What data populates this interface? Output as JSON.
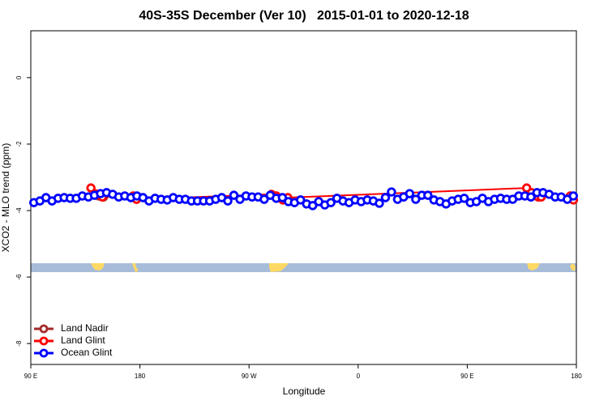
{
  "chart_data": {
    "type": "line",
    "title": "40S-35S December (Ver 10)   2015-01-01 to 2020-12-18",
    "xlabel": "Longitude",
    "ylabel": "XCO2 - MLO trend (ppm)",
    "xlim": [
      90,
      540
    ],
    "ylim": [
      -8.63,
      1.41
    ],
    "xticks": [
      {
        "value": 90,
        "label": "90 E"
      },
      {
        "value": 180,
        "label": "180"
      },
      {
        "value": 270,
        "label": "90 W"
      },
      {
        "value": 360,
        "label": "0"
      },
      {
        "value": 450,
        "label": "90 E"
      },
      {
        "value": 540,
        "label": "180"
      }
    ],
    "yticks": [
      -8,
      -6,
      -4,
      -2,
      0
    ],
    "legend": "bottom-left",
    "series": [
      {
        "name": "Land Nadir",
        "color": "#a52a2a",
        "x": [
          146,
          150,
          178.5
        ],
        "values": [
          -3.56,
          -3.59,
          -3.59
        ]
      },
      {
        "name": "Land Glint",
        "color": "#ff0000",
        "x": [
          139.6,
          143.6,
          149,
          174.5,
          177.2,
          288.5,
          292.5,
          297.9,
          302,
          499,
          503,
          508.5,
          511,
          535,
          537.6
        ],
        "values": [
          -3.32,
          -3.5,
          -3.59,
          -3.56,
          -3.66,
          -3.51,
          -3.56,
          -3.68,
          -3.61,
          -3.32,
          -3.46,
          -3.59,
          -3.59,
          -3.56,
          -3.68
        ]
      },
      {
        "name": "Ocean Glint",
        "color": "#0000ff",
        "x": [
          92.5,
          97.5,
          102.5,
          107.5,
          112.5,
          117.5,
          122.5,
          127.5,
          132.5,
          137.5,
          142.5,
          147.5,
          152.5,
          157.5,
          162.5,
          167.5,
          172.5,
          177.5,
          182.5,
          187.5,
          192.5,
          197.5,
          202.5,
          207.5,
          212.5,
          217.5,
          222.5,
          227.5,
          232.5,
          237.5,
          242.5,
          247.5,
          252.5,
          257.5,
          262.5,
          267.5,
          272.5,
          277.5,
          282.5,
          287.5,
          292.5,
          297.5,
          302.5,
          307.5,
          312.5,
          317.5,
          322.5,
          327.5,
          332.5,
          337.5,
          342.5,
          347.5,
          352.5,
          357.5,
          362.5,
          367.5,
          372.5,
          377.5,
          382.5,
          387.5,
          392.5,
          397.5,
          402.5,
          407.5,
          412.5,
          417.5,
          422.5,
          427.5,
          432.5,
          437.5,
          442.5,
          447.5,
          452.5,
          457.5,
          462.5,
          467.5,
          472.5,
          477.5,
          482.5,
          487.5,
          492.5,
          497.5,
          502.5,
          507.5,
          512.5,
          517.5,
          522.5,
          527.5,
          532.5,
          537.5
        ],
        "values": [
          -3.76,
          -3.71,
          -3.61,
          -3.71,
          -3.63,
          -3.61,
          -3.63,
          -3.63,
          -3.56,
          -3.59,
          -3.54,
          -3.49,
          -3.46,
          -3.51,
          -3.59,
          -3.56,
          -3.61,
          -3.56,
          -3.61,
          -3.71,
          -3.63,
          -3.66,
          -3.68,
          -3.61,
          -3.66,
          -3.66,
          -3.71,
          -3.71,
          -3.71,
          -3.71,
          -3.66,
          -3.61,
          -3.71,
          -3.54,
          -3.66,
          -3.56,
          -3.59,
          -3.59,
          -3.66,
          -3.54,
          -3.63,
          -3.61,
          -3.73,
          -3.76,
          -3.68,
          -3.8,
          -3.85,
          -3.73,
          -3.83,
          -3.76,
          -3.63,
          -3.71,
          -3.76,
          -3.68,
          -3.73,
          -3.68,
          -3.71,
          -3.78,
          -3.61,
          -3.44,
          -3.66,
          -3.59,
          -3.49,
          -3.66,
          -3.54,
          -3.54,
          -3.68,
          -3.73,
          -3.8,
          -3.71,
          -3.66,
          -3.63,
          -3.76,
          -3.73,
          -3.63,
          -3.73,
          -3.66,
          -3.63,
          -3.66,
          -3.66,
          -3.56,
          -3.56,
          -3.59,
          -3.46,
          -3.46,
          -3.51,
          -3.59,
          -3.59,
          -3.66,
          -3.56
        ]
      }
    ]
  }
}
